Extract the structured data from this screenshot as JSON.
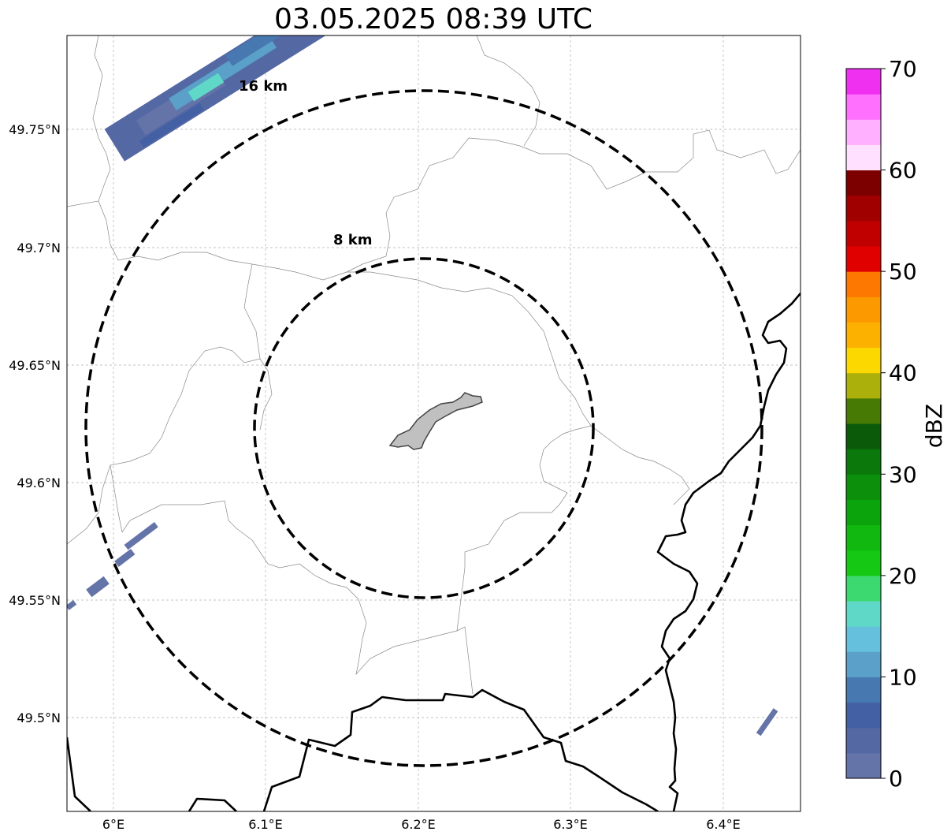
{
  "title": "03.05.2025 08:39 UTC",
  "map": {
    "x_ticks": [
      "6°E",
      "6.1°E",
      "6.2°E",
      "6.3°E",
      "6.4°E"
    ],
    "y_ticks": [
      "49.75°N",
      "49.7°N",
      "49.65°N",
      "49.6°N",
      "49.55°N",
      "49.5°N"
    ],
    "ring_labels": [
      "16 km",
      "8 km"
    ],
    "grid": true,
    "extent": {
      "lon": [
        5.97,
        6.45
      ],
      "lat": [
        49.46,
        49.79
      ]
    },
    "radar_center": {
      "lon": 6.2,
      "lat": 49.623
    }
  },
  "colorbar": {
    "label": "dBZ",
    "tick_labels": [
      "0",
      "10",
      "20",
      "30",
      "40",
      "50",
      "60",
      "70"
    ],
    "range": [
      0,
      70
    ],
    "step": 2.5,
    "colors": [
      "#6474a8",
      "#5468a4",
      "#4460a4",
      "#4878b0",
      "#5aa0c8",
      "#64c0dc",
      "#60d8c8",
      "#3cd870",
      "#14c814",
      "#10b810",
      "#0ca40c",
      "#0c900c",
      "#0a780a",
      "#0a5a0a",
      "#477a05",
      "#acb00a",
      "#fcd800",
      "#fcb000",
      "#fc9800",
      "#fc7800",
      "#e00000",
      "#c00000",
      "#a00000",
      "#7c0000",
      "#ffe0ff",
      "#ffb0ff",
      "#ff70ff",
      "#f030f0"
    ]
  }
}
